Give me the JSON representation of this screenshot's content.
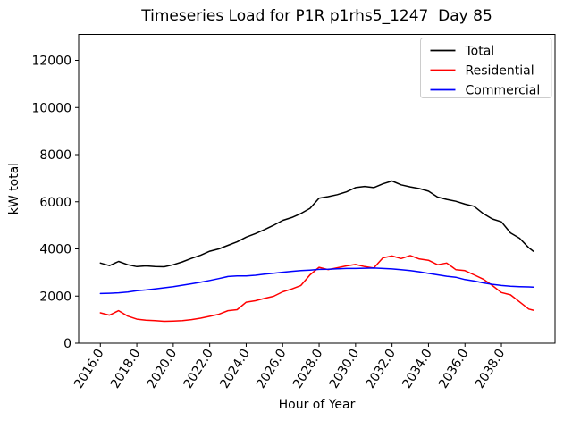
{
  "figure": {
    "title": "Timeseries Load for P1R p1rhs5_1247  Day 85",
    "background": "#ffffff"
  },
  "chart_data": {
    "type": "line",
    "title": "Timeseries Load for P1R p1rhs5_1247  Day 85",
    "xlabel": "Hour of Year",
    "ylabel": "kW total",
    "xlim": [
      2014.81,
      2040.94
    ],
    "ylim": [
      0,
      13100
    ],
    "grid": false,
    "legend_position": "upper right",
    "legend_border_color": "#cccccc",
    "axes_color": "#000000",
    "xticks": [
      2016,
      2018,
      2020,
      2022,
      2024,
      2026,
      2028,
      2030,
      2032,
      2034,
      2036,
      2038
    ],
    "xtick_labels": [
      "2016.0",
      "2018.0",
      "2020.0",
      "2022.0",
      "2024.0",
      "2026.0",
      "2028.0",
      "2030.0",
      "2032.0",
      "2034.0",
      "2036.0",
      "2038.0"
    ],
    "yticks": [
      0,
      2000,
      4000,
      6000,
      8000,
      10000,
      12000
    ],
    "ytick_labels": [
      "0",
      "2000",
      "4000",
      "6000",
      "8000",
      "10000",
      "12000"
    ],
    "x": [
      2016,
      2016.5,
      2017,
      2017.5,
      2018,
      2018.5,
      2019,
      2019.5,
      2020,
      2020.5,
      2021,
      2021.5,
      2022,
      2022.5,
      2023,
      2023.5,
      2024,
      2024.5,
      2025,
      2025.5,
      2026,
      2026.5,
      2027,
      2027.5,
      2028,
      2028.5,
      2029,
      2029.5,
      2030,
      2030.5,
      2031,
      2031.5,
      2032,
      2032.5,
      2033,
      2033.5,
      2034,
      2034.5,
      2035,
      2035.5,
      2036,
      2036.5,
      2037,
      2037.5,
      2038,
      2038.5,
      2039,
      2039.5,
      2039.75
    ],
    "series": [
      {
        "name": "Total",
        "color": "#000000",
        "values": [
          3400,
          3290,
          3470,
          3330,
          3250,
          3280,
          3250,
          3240,
          3330,
          3450,
          3600,
          3730,
          3900,
          4000,
          4150,
          4300,
          4500,
          4650,
          4820,
          5000,
          5210,
          5330,
          5500,
          5720,
          6150,
          6220,
          6300,
          6420,
          6600,
          6650,
          6600,
          6760,
          6880,
          6720,
          6630,
          6560,
          6450,
          6200,
          6100,
          6020,
          5900,
          5810,
          5500,
          5270,
          5150,
          4680,
          4450,
          4050,
          3900
        ]
      },
      {
        "name": "Residential",
        "color": "#ff0000",
        "values": [
          1290,
          1190,
          1380,
          1150,
          1020,
          980,
          960,
          930,
          940,
          960,
          1000,
          1060,
          1140,
          1230,
          1380,
          1420,
          1740,
          1800,
          1900,
          1990,
          2180,
          2300,
          2450,
          2900,
          3220,
          3120,
          3200,
          3280,
          3340,
          3250,
          3190,
          3620,
          3700,
          3590,
          3720,
          3570,
          3520,
          3330,
          3400,
          3120,
          3080,
          2900,
          2720,
          2450,
          2150,
          2050,
          1750,
          1450,
          1400
        ]
      },
      {
        "name": "Commercial",
        "color": "#0000ff",
        "values": [
          2110,
          2120,
          2140,
          2170,
          2230,
          2260,
          2300,
          2350,
          2400,
          2460,
          2520,
          2590,
          2660,
          2740,
          2830,
          2850,
          2850,
          2880,
          2930,
          2970,
          3010,
          3050,
          3080,
          3100,
          3130,
          3140,
          3160,
          3170,
          3170,
          3180,
          3190,
          3170,
          3150,
          3120,
          3080,
          3030,
          2960,
          2900,
          2840,
          2800,
          2700,
          2640,
          2560,
          2500,
          2450,
          2420,
          2400,
          2390,
          2380
        ]
      }
    ]
  }
}
